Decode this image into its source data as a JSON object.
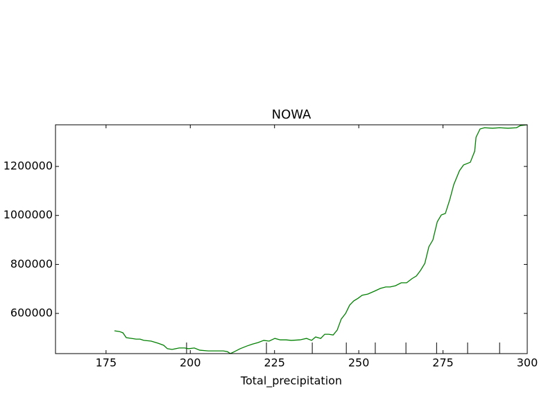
{
  "chart_data": {
    "type": "line",
    "title": "NOWA",
    "x_label": "Total_precipitation",
    "x": [
      177.5,
      179,
      180,
      181,
      182.6,
      183.9,
      185.1,
      186.2,
      188.4,
      190.5,
      192.1,
      193.2,
      194.6,
      196.7,
      198.3,
      199.5,
      201.2,
      202.8,
      205.3,
      209.8,
      211,
      211.9,
      213.1,
      214.8,
      216.8,
      218.5,
      220.1,
      221.8,
      223.4,
      225.1,
      226.7,
      228.4,
      230,
      232.5,
      234.5,
      236,
      237.2,
      238.7,
      239.9,
      241.1,
      242.4,
      243.6,
      244.8,
      246.1,
      247.3,
      248.5,
      249.8,
      251,
      252.7,
      254.7,
      256.4,
      258,
      259.3,
      260.9,
      262.6,
      264.2,
      265.8,
      267.1,
      268.3,
      269.6,
      270.8,
      272,
      273.3,
      274.5,
      275.7,
      277,
      278.2,
      279.9,
      281.1,
      283.1,
      284.4,
      284.8,
      286,
      287.3,
      289.7,
      291.8,
      294.3,
      296.8,
      298,
      300
    ],
    "series": [
      {
        "color": "#008000",
        "values": [
          529000,
          526000,
          521000,
          501000,
          498000,
          495000,
          495000,
          490000,
          487000,
          478000,
          470000,
          456000,
          453000,
          459000,
          459000,
          456000,
          459000,
          450000,
          447000,
          447000,
          444000,
          436000,
          444000,
          456000,
          467000,
          475000,
          481000,
          490000,
          487000,
          498000,
          492000,
          492000,
          490000,
          492000,
          498000,
          490000,
          504000,
          498000,
          515000,
          515000,
          512000,
          532000,
          577000,
          600000,
          634000,
          651000,
          662000,
          674000,
          679000,
          691000,
          702000,
          708000,
          708000,
          713000,
          725000,
          725000,
          742000,
          753000,
          775000,
          804000,
          872000,
          900000,
          974000,
          1002000,
          1008000,
          1064000,
          1126000,
          1183000,
          1206000,
          1217000,
          1262000,
          1319000,
          1353000,
          1358000,
          1356000,
          1358000,
          1356000,
          1358000,
          1367000,
          1370000
        ]
      }
    ],
    "deciles": [
      198.9,
      222.6,
      236.2,
      246.3,
      254.9,
      264.0,
      273.1,
      282.3,
      291.8
    ],
    "xlim": [
      160,
      300
    ],
    "ylim": [
      436000,
      1370000
    ],
    "xticks": [
      175,
      200,
      225,
      250,
      275,
      300
    ],
    "yticks": [
      600000,
      800000,
      1000000,
      1200000
    ]
  }
}
